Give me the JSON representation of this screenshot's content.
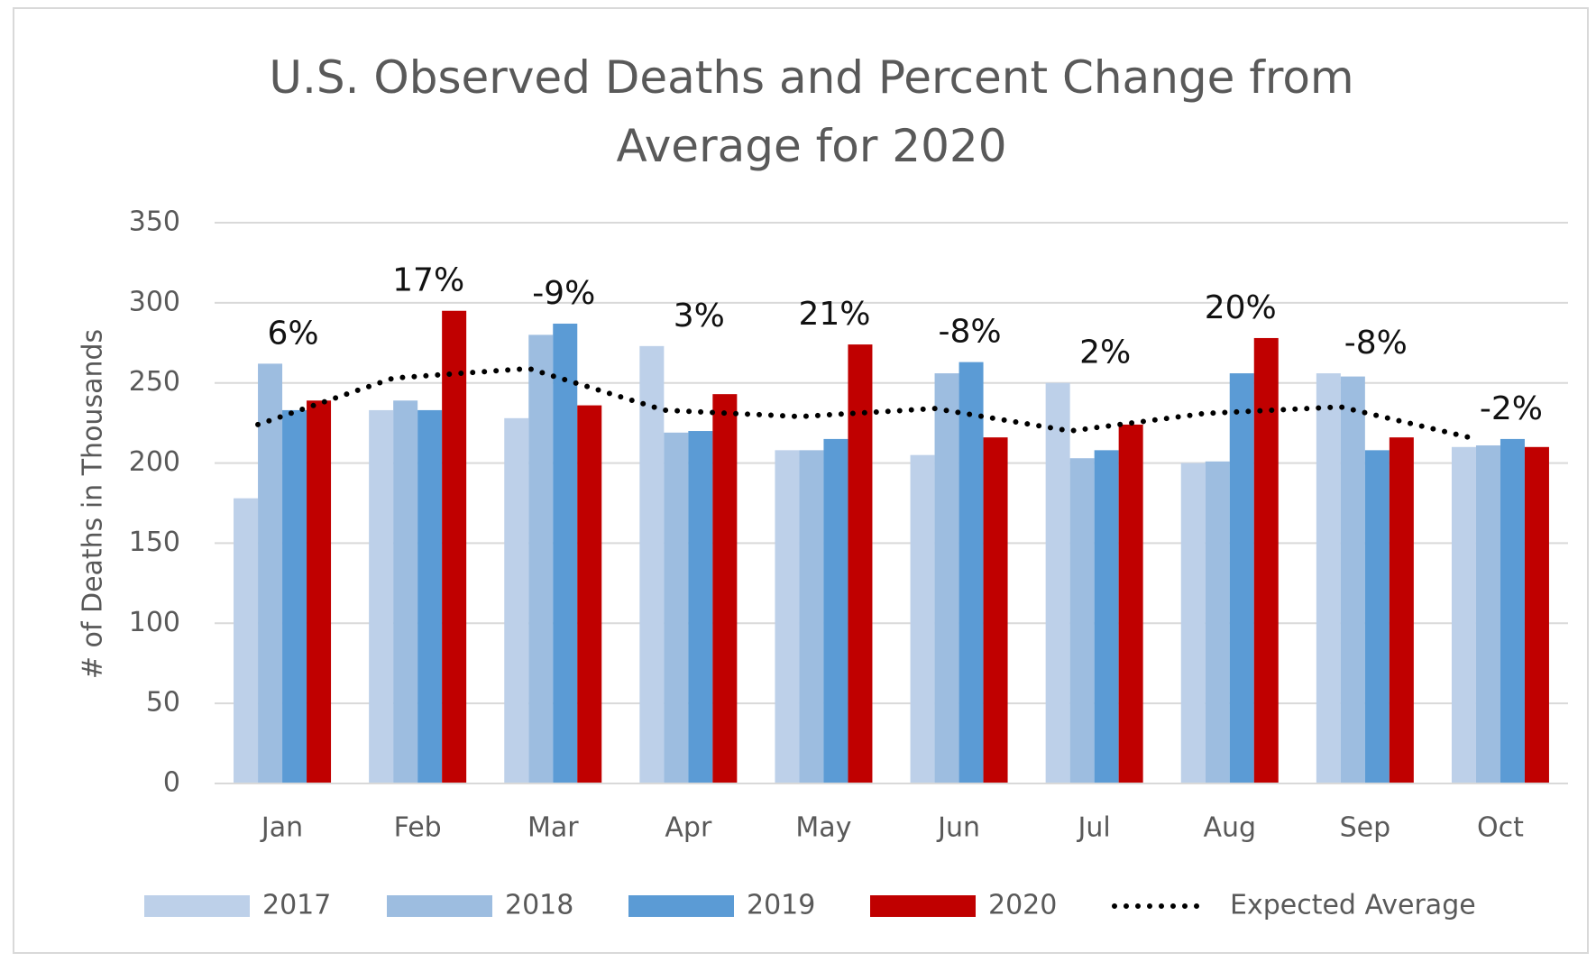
{
  "chart_data": {
    "type": "bar",
    "title": "U.S. Observed Deaths and Percent Change from Average for 2020",
    "y_label": "# of Deaths in Thousands",
    "categories": [
      "Jan",
      "Feb",
      "Mar",
      "Apr",
      "May",
      "Jun",
      "Jul",
      "Aug",
      "Sep",
      "Oct"
    ],
    "series": [
      {
        "name": "2017",
        "color": "#bdd0e9",
        "values": [
          178,
          233,
          228,
          273,
          208,
          205,
          250,
          200,
          256,
          210
        ]
      },
      {
        "name": "2018",
        "color": "#9dbde0",
        "values": [
          262,
          239,
          280,
          219,
          208,
          256,
          203,
          201,
          254,
          211
        ]
      },
      {
        "name": "2019",
        "color": "#5b9bd5",
        "values": [
          233,
          233,
          287,
          220,
          215,
          263,
          208,
          256,
          208,
          215
        ]
      },
      {
        "name": "2020",
        "color": "#c00000",
        "values": [
          239,
          295,
          236,
          243,
          274,
          216,
          224,
          278,
          216,
          210
        ]
      }
    ],
    "line": {
      "name": "Expected Average",
      "color": "#000000",
      "values": [
        224,
        253,
        259,
        233,
        229,
        234,
        220,
        231,
        235,
        215
      ]
    },
    "percent_change": {
      "values": [
        6,
        17,
        -9,
        3,
        21,
        -8,
        2,
        20,
        -8,
        -2
      ],
      "value_labels": [
        "6%",
        "17%",
        "-9%",
        "3%",
        "21%",
        "-8%",
        "2%",
        "20%",
        "-8%",
        "-2%"
      ]
    },
    "ylim": [
      0,
      350
    ],
    "yticks": [
      0,
      50,
      100,
      150,
      200,
      250,
      300,
      350
    ],
    "grid": true,
    "legend": "bottom"
  }
}
